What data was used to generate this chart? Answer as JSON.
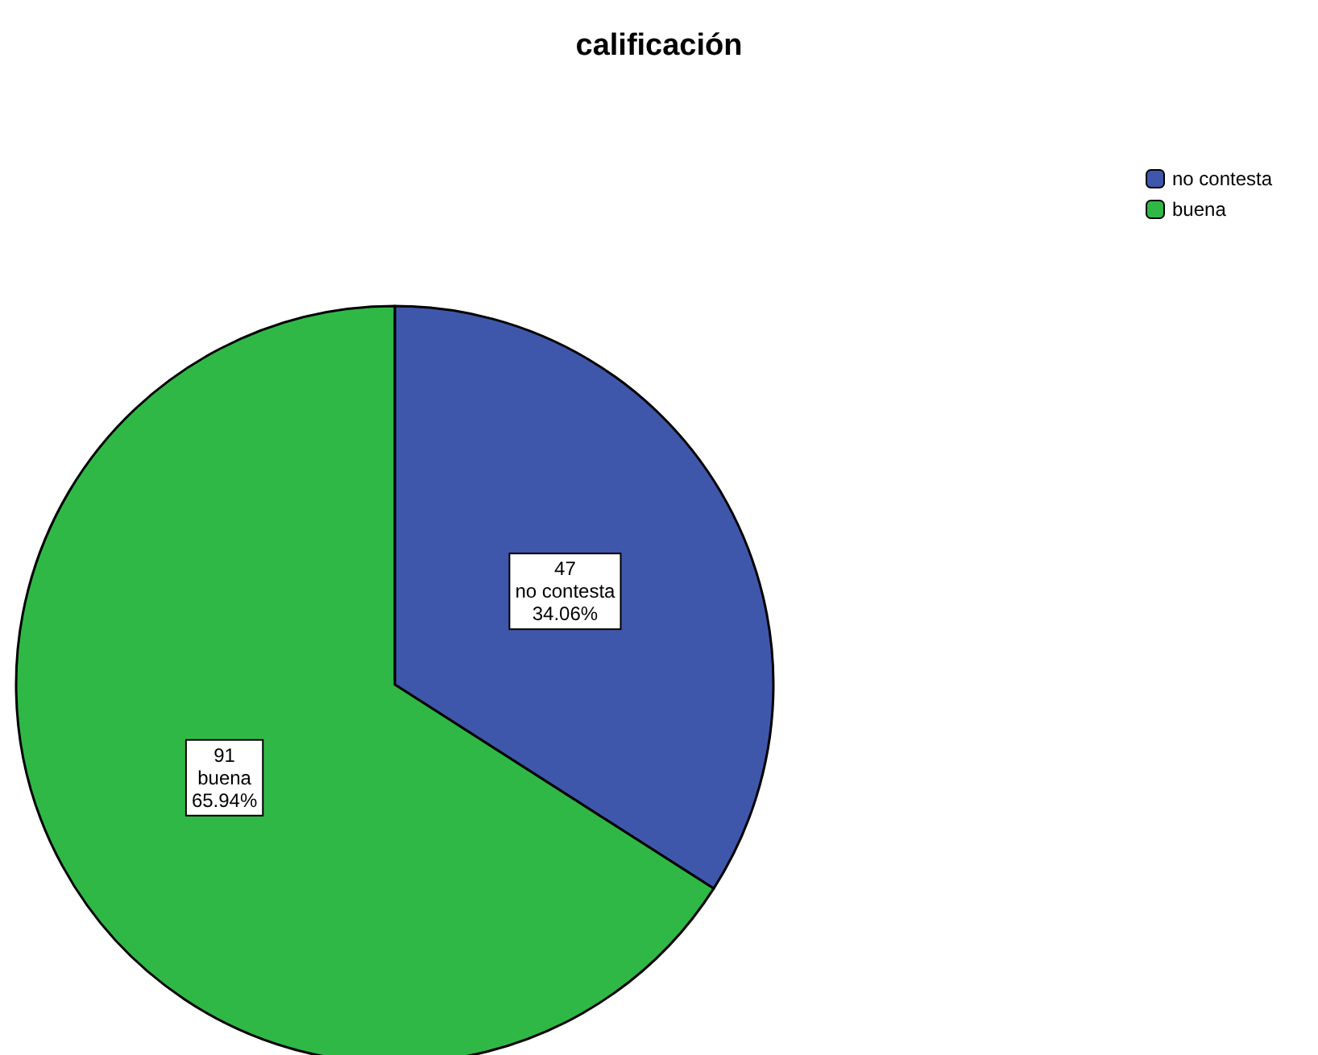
{
  "chart_data": {
    "type": "pie",
    "title": "calificación",
    "categories": [
      "no contesta",
      "buena"
    ],
    "values": [
      34.06,
      65.94
    ],
    "colors": [
      "#3f57ab",
      "#30b846"
    ],
    "value_labels": [
      "47\nno contesta\n34.06%",
      "91\nbuena\n65.94%"
    ],
    "legend": "top right"
  }
}
